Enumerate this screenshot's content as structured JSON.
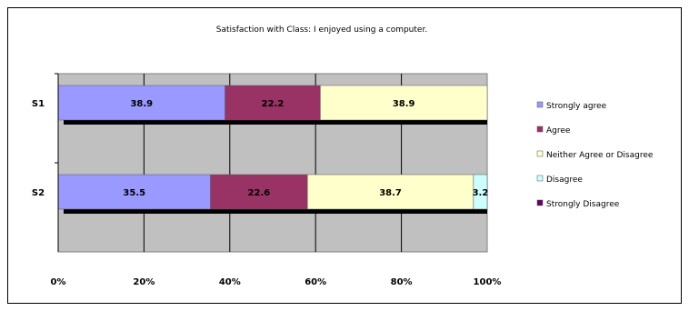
{
  "chart_data": {
    "type": "bar",
    "stacked": "percent",
    "orientation": "horizontal",
    "title": "Satisfaction with Class: I enjoyed using a computer.",
    "categories": [
      "S1",
      "S2"
    ],
    "series": [
      {
        "name": "Strongly agree",
        "values": [
          38.9,
          35.5
        ],
        "labels": [
          "38.9",
          "35.5"
        ],
        "color": "#9999ff"
      },
      {
        "name": "Agree",
        "values": [
          22.2,
          22.6
        ],
        "labels": [
          "22.2",
          "22.6"
        ],
        "color": "#993366"
      },
      {
        "name": "Neither Agree or Disagree",
        "values": [
          38.9,
          38.7
        ],
        "labels": [
          "38.9",
          "38.7"
        ],
        "color": "#ffffcc"
      },
      {
        "name": "Disagree",
        "values": [
          0,
          3.2
        ],
        "labels": [
          "",
          "3.2"
        ],
        "color": "#ccffff"
      },
      {
        "name": "Strongly Disagree",
        "values": [
          0,
          0
        ],
        "labels": [
          "",
          ""
        ],
        "color": "#660066"
      }
    ],
    "xticks": [
      "0%",
      "20%",
      "40%",
      "60%",
      "80%",
      "100%"
    ],
    "xlim": [
      0,
      100
    ],
    "grid": true,
    "plot_background": "#c0c0c0",
    "legend_position": "right"
  }
}
